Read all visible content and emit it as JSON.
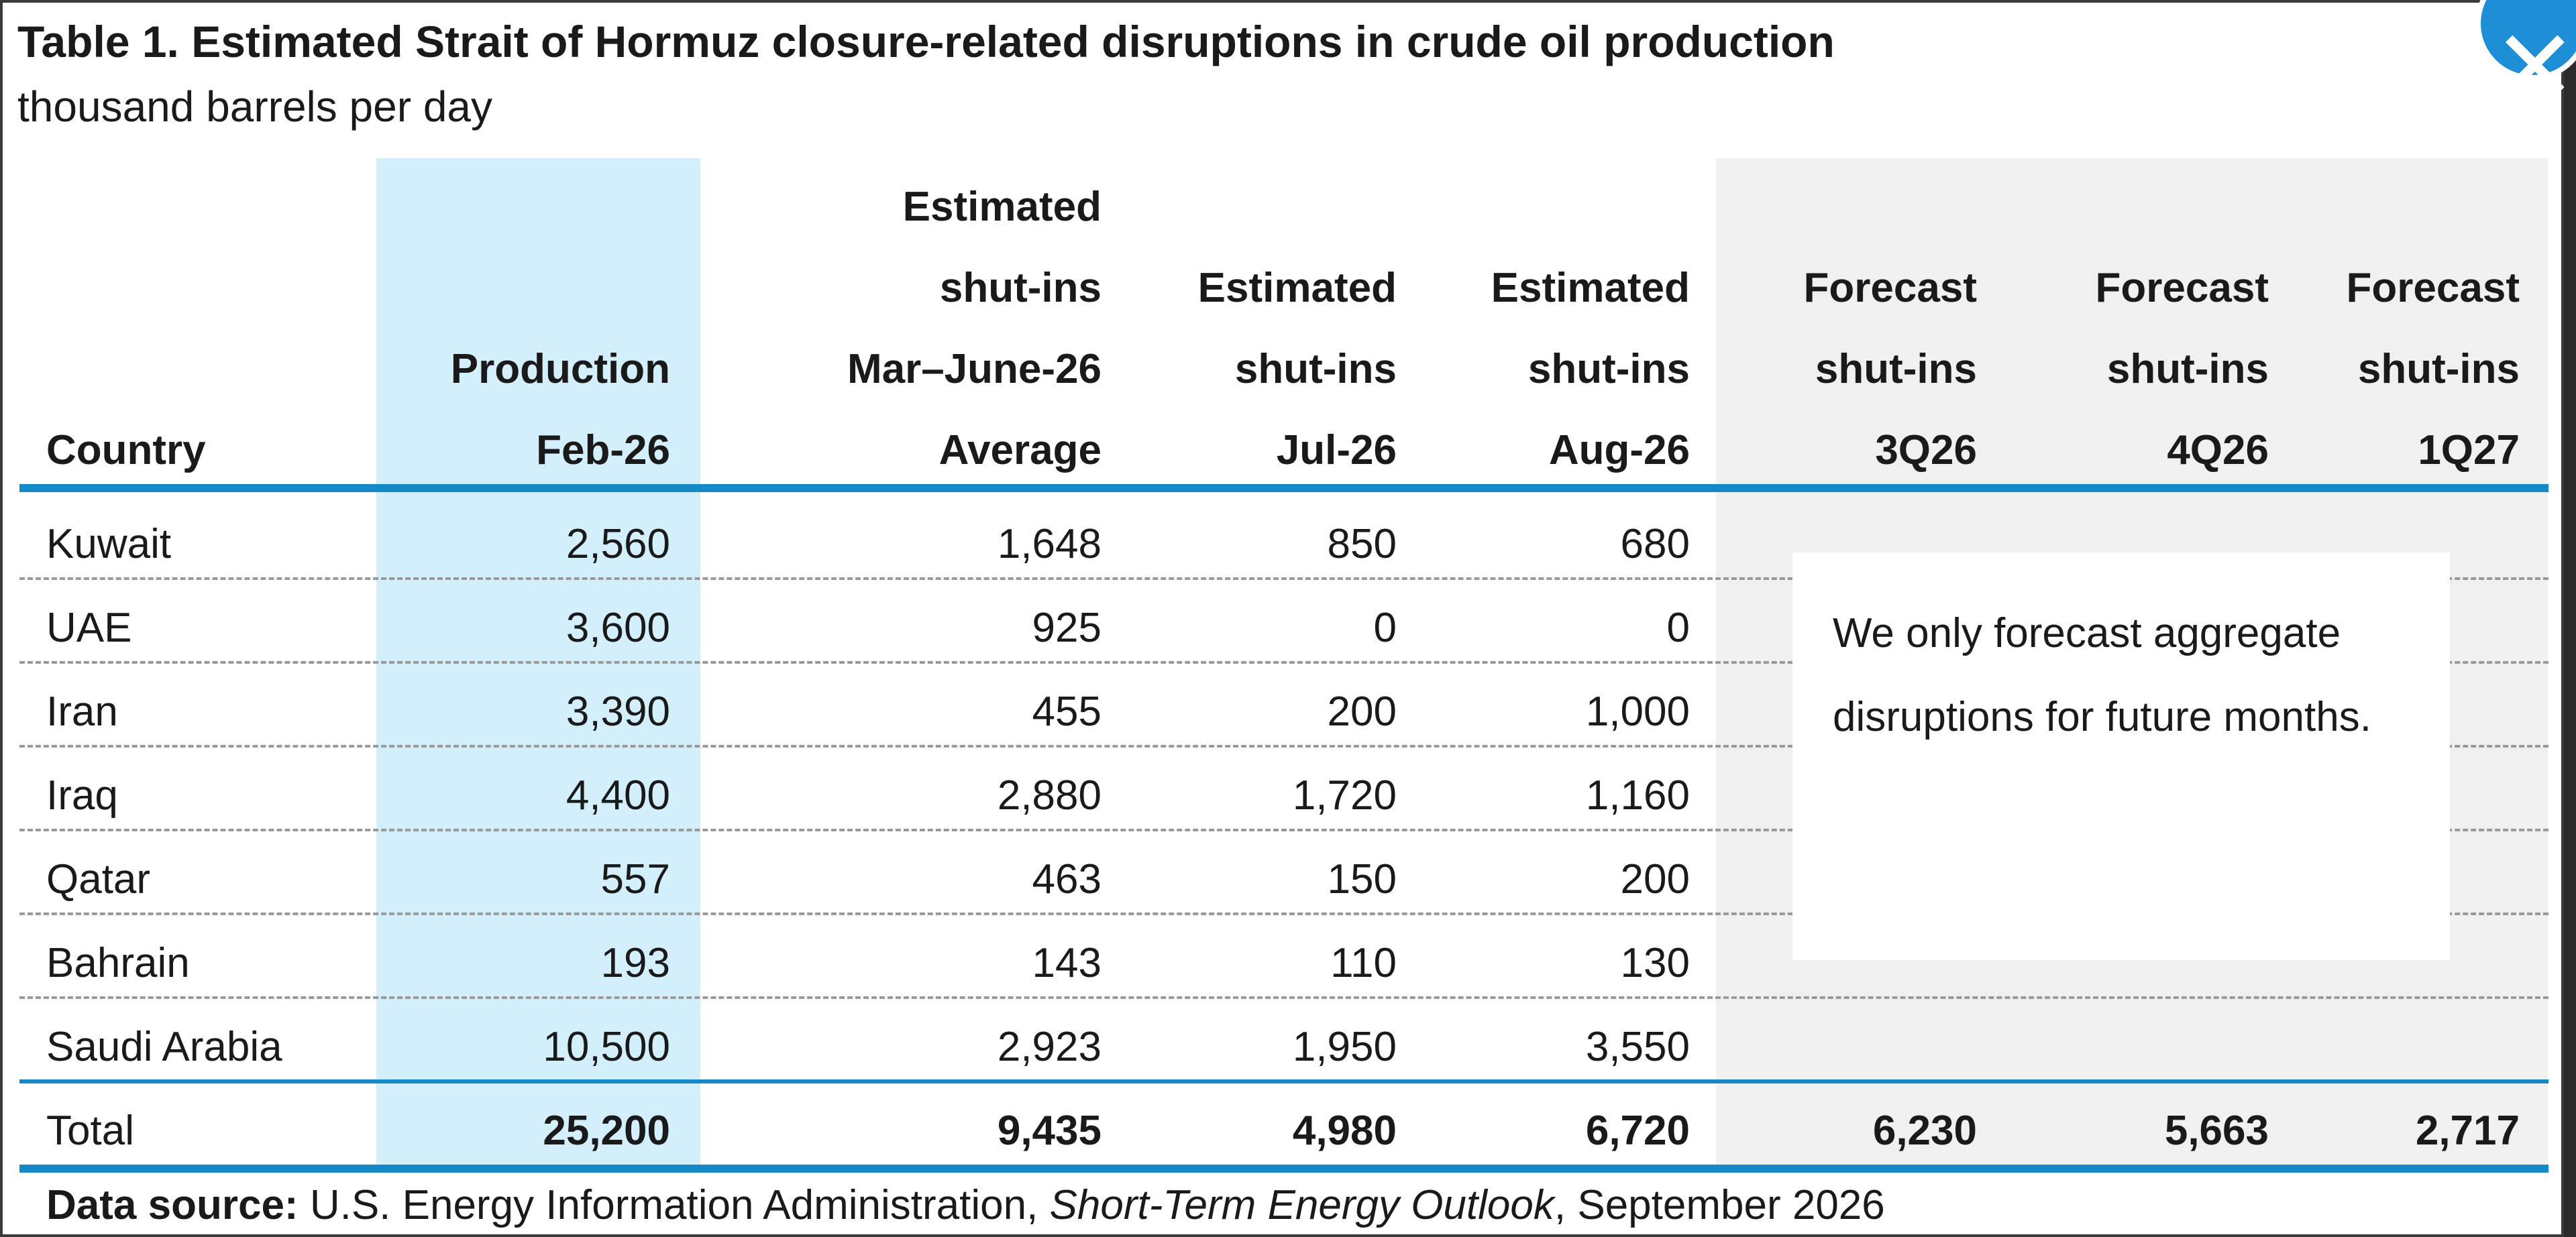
{
  "title": "Table 1. Estimated Strait of Hormuz closure-related disruptions in crude oil production",
  "subtitle": "thousand barrels per day",
  "columns": [
    {
      "lines": [
        "Country"
      ]
    },
    {
      "lines": [
        "Production",
        "Feb-26"
      ]
    },
    {
      "lines": [
        "Estimated",
        "shut-ins",
        "Mar–June-26",
        "Average"
      ]
    },
    {
      "lines": [
        "Estimated",
        "shut-ins",
        "Jul-26"
      ]
    },
    {
      "lines": [
        "Estimated",
        "shut-ins",
        "Aug-26"
      ]
    },
    {
      "lines": [
        "Forecast",
        "shut-ins",
        "3Q26"
      ]
    },
    {
      "lines": [
        "Forecast",
        "shut-ins",
        "4Q26"
      ]
    },
    {
      "lines": [
        "Forecast",
        "shut-ins",
        "1Q27"
      ]
    }
  ],
  "rows": [
    {
      "country": "Kuwait",
      "production": "2,560",
      "mar_jun": "1,648",
      "jul": "850",
      "aug": "680"
    },
    {
      "country": "UAE",
      "production": "3,600",
      "mar_jun": "925",
      "jul": "0",
      "aug": "0"
    },
    {
      "country": "Iran",
      "production": "3,390",
      "mar_jun": "455",
      "jul": "200",
      "aug": "1,000"
    },
    {
      "country": "Iraq",
      "production": "4,400",
      "mar_jun": "2,880",
      "jul": "1,720",
      "aug": "1,160"
    },
    {
      "country": "Qatar",
      "production": "557",
      "mar_jun": "463",
      "jul": "150",
      "aug": "200"
    },
    {
      "country": "Bahrain",
      "production": "193",
      "mar_jun": "143",
      "jul": "110",
      "aug": "130"
    },
    {
      "country": "Saudi Arabia",
      "production": "10,500",
      "mar_jun": "2,923",
      "jul": "1,950",
      "aug": "3,550"
    }
  ],
  "total": {
    "label": "Total",
    "production": "25,200",
    "mar_jun": "9,435",
    "jul": "4,980",
    "aug": "6,720",
    "q3_26": "6,230",
    "q4_26": "5,663",
    "q1_27": "2,717"
  },
  "note": "We only forecast aggregate disruptions for future months.",
  "source": {
    "label": "Data source:",
    "text_before": "U.S. Energy Information Administration,",
    "publication": "Short-Term Energy Outlook",
    "text_after": ", September 2026"
  },
  "colors": {
    "accent_blue": "#1489c8",
    "production_band": "#d3effb",
    "forecast_band": "#f0f0f0",
    "close_button": "#1e8fd6"
  },
  "icons": {
    "close": "close-icon"
  }
}
